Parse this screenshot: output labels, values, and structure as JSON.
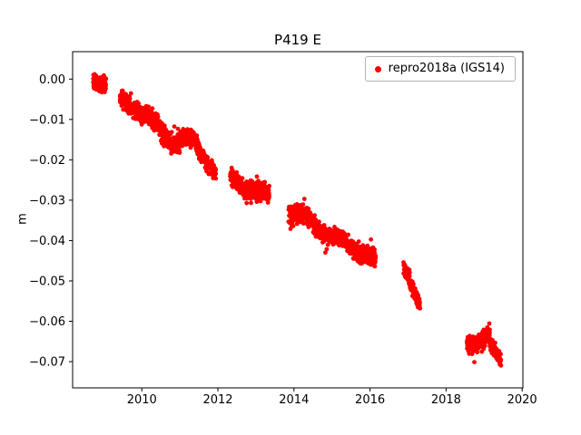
{
  "chart_data": {
    "type": "scatter",
    "title": "P419 E",
    "xlabel": "",
    "ylabel": "m",
    "legend": [
      "repro2018a (IGS14)"
    ],
    "legend_position": "upper right",
    "marker": {
      "color": "#ff0000",
      "size": 2.4
    },
    "grid": false,
    "xlim": [
      2008.18,
      2020.02
    ],
    "ylim": [
      -0.0765,
      0.0068
    ],
    "xticks": [
      2010,
      2012,
      2014,
      2016,
      2018,
      2020
    ],
    "xtick_labels": [
      "2010",
      "2012",
      "2014",
      "2016",
      "2018",
      "2020"
    ],
    "yticks": [
      0.0,
      -0.01,
      -0.02,
      -0.03,
      -0.04,
      -0.05,
      -0.06,
      -0.07
    ],
    "ytick_labels": [
      "0.00",
      "−0.01",
      "−0.02",
      "−0.03",
      "−0.04",
      "−0.05",
      "−0.06",
      "−0.07"
    ],
    "seed": 419,
    "seasonal_amplitude": 0.0009,
    "outlier_probability": 0.05,
    "outlier_scale": 1.9,
    "segments": [
      {
        "t0": 2008.72,
        "t1": 2009.06,
        "y0": 0.0005,
        "y1": -0.0015,
        "n": 150,
        "spread": 0.0022
      },
      {
        "t0": 2009.42,
        "t1": 2009.72,
        "y0": -0.0045,
        "y1": -0.006,
        "n": 95,
        "spread": 0.0023
      },
      {
        "t0": 2009.72,
        "t1": 2010.0,
        "y0": -0.006,
        "y1": -0.009,
        "n": 95,
        "spread": 0.0025
      },
      {
        "t0": 2010.0,
        "t1": 2010.5,
        "y0": -0.0085,
        "y1": -0.0125,
        "n": 160,
        "spread": 0.0028
      },
      {
        "t0": 2010.5,
        "t1": 2011.0,
        "y0": -0.013,
        "y1": -0.016,
        "n": 160,
        "spread": 0.0028
      },
      {
        "t0": 2011.0,
        "t1": 2011.45,
        "y0": -0.0145,
        "y1": -0.016,
        "n": 150,
        "spread": 0.0025
      },
      {
        "t0": 2011.45,
        "t1": 2011.95,
        "y0": -0.017,
        "y1": -0.0225,
        "n": 150,
        "spread": 0.0025
      },
      {
        "t0": 2012.32,
        "t1": 2012.8,
        "y0": -0.0245,
        "y1": -0.027,
        "n": 150,
        "spread": 0.0025
      },
      {
        "t0": 2012.8,
        "t1": 2013.35,
        "y0": -0.027,
        "y1": -0.0295,
        "n": 175,
        "spread": 0.003
      },
      {
        "t0": 2013.85,
        "t1": 2014.4,
        "y0": -0.033,
        "y1": -0.035,
        "n": 175,
        "spread": 0.0026
      },
      {
        "t0": 2014.4,
        "t1": 2015.1,
        "y0": -0.035,
        "y1": -0.0395,
        "n": 215,
        "spread": 0.0026
      },
      {
        "t0": 2015.1,
        "t1": 2015.8,
        "y0": -0.0395,
        "y1": -0.043,
        "n": 215,
        "spread": 0.0026
      },
      {
        "t0": 2015.8,
        "t1": 2016.15,
        "y0": -0.042,
        "y1": -0.0455,
        "n": 125,
        "spread": 0.0028
      },
      {
        "t0": 2016.88,
        "t1": 2017.05,
        "y0": -0.046,
        "y1": -0.05,
        "n": 55,
        "spread": 0.0022
      },
      {
        "t0": 2017.05,
        "t1": 2017.32,
        "y0": -0.051,
        "y1": -0.0575,
        "n": 85,
        "spread": 0.0022
      },
      {
        "t0": 2018.55,
        "t1": 2019.15,
        "y0": -0.0655,
        "y1": -0.0635,
        "n": 185,
        "spread": 0.0026
      },
      {
        "t0": 2019.15,
        "t1": 2019.45,
        "y0": -0.066,
        "y1": -0.0705,
        "n": 90,
        "spread": 0.0022
      }
    ]
  }
}
